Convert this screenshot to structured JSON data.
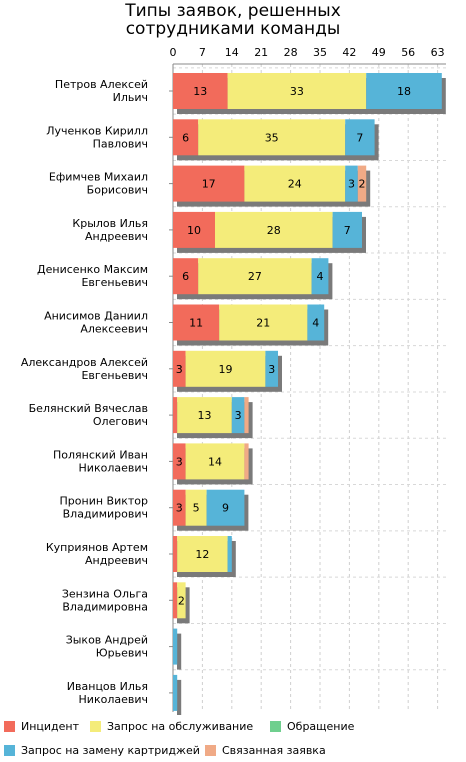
{
  "chart_data": {
    "type": "bar",
    "orientation": "horizontal",
    "stacked": true,
    "title_lines": [
      "Типы заявок, решенных",
      "сотрудниками команды"
    ],
    "x_ticks": [
      0,
      7,
      14,
      21,
      28,
      35,
      42,
      49,
      56,
      63
    ],
    "xlim": [
      0,
      65
    ],
    "grid": true,
    "legend_position": "bottom",
    "categories": [
      [
        "Петров Алексей",
        "Ильич"
      ],
      [
        "Лученков Кирилл",
        "Павлович"
      ],
      [
        "Ефимчев Михаил",
        "Борисович"
      ],
      [
        "Крылов Илья",
        "Андреевич"
      ],
      [
        "Денисенко Максим",
        "Евгеньевич"
      ],
      [
        "Анисимов Даниил",
        "Алексеевич"
      ],
      [
        "Александров Алексей",
        "Евгеньевич"
      ],
      [
        "Белянский Вячеслав",
        "Олегович"
      ],
      [
        "Полянский Иван",
        "Николаевич"
      ],
      [
        "Пронин Виктор",
        "Владимирович"
      ],
      [
        "Куприянов Артем",
        "Андреевич"
      ],
      [
        "Зензина Ольга",
        "Владимировна"
      ],
      [
        "Зыков Андрей",
        "Юрьевич"
      ],
      [
        "Иванцов Илья",
        "Николаевич"
      ]
    ],
    "series": [
      {
        "name": "Инцидент",
        "color": "#f26b5b",
        "values": [
          13,
          6,
          17,
          10,
          6,
          11,
          3,
          1,
          3,
          3,
          1,
          1,
          0,
          0
        ]
      },
      {
        "name": "Запрос на обслуживание",
        "color": "#f4ec7a",
        "values": [
          33,
          35,
          24,
          28,
          27,
          21,
          19,
          13,
          14,
          5,
          12,
          2,
          0,
          0
        ]
      },
      {
        "name": "Обращение",
        "color": "#6fcf8e",
        "values": [
          0,
          0,
          0,
          0,
          0,
          0,
          0,
          0,
          0,
          0,
          0,
          0,
          0,
          0
        ]
      },
      {
        "name": "Запрос на замену картриджей",
        "color": "#56b4d8",
        "values": [
          18,
          7,
          3,
          7,
          4,
          4,
          3,
          3,
          0,
          9,
          1,
          0,
          1,
          1
        ]
      },
      {
        "name": "Связанная заявка",
        "color": "#f0aa86",
        "values": [
          0,
          0,
          2,
          0,
          0,
          0,
          0,
          1,
          1,
          0,
          0,
          0,
          0,
          0
        ]
      }
    ]
  }
}
